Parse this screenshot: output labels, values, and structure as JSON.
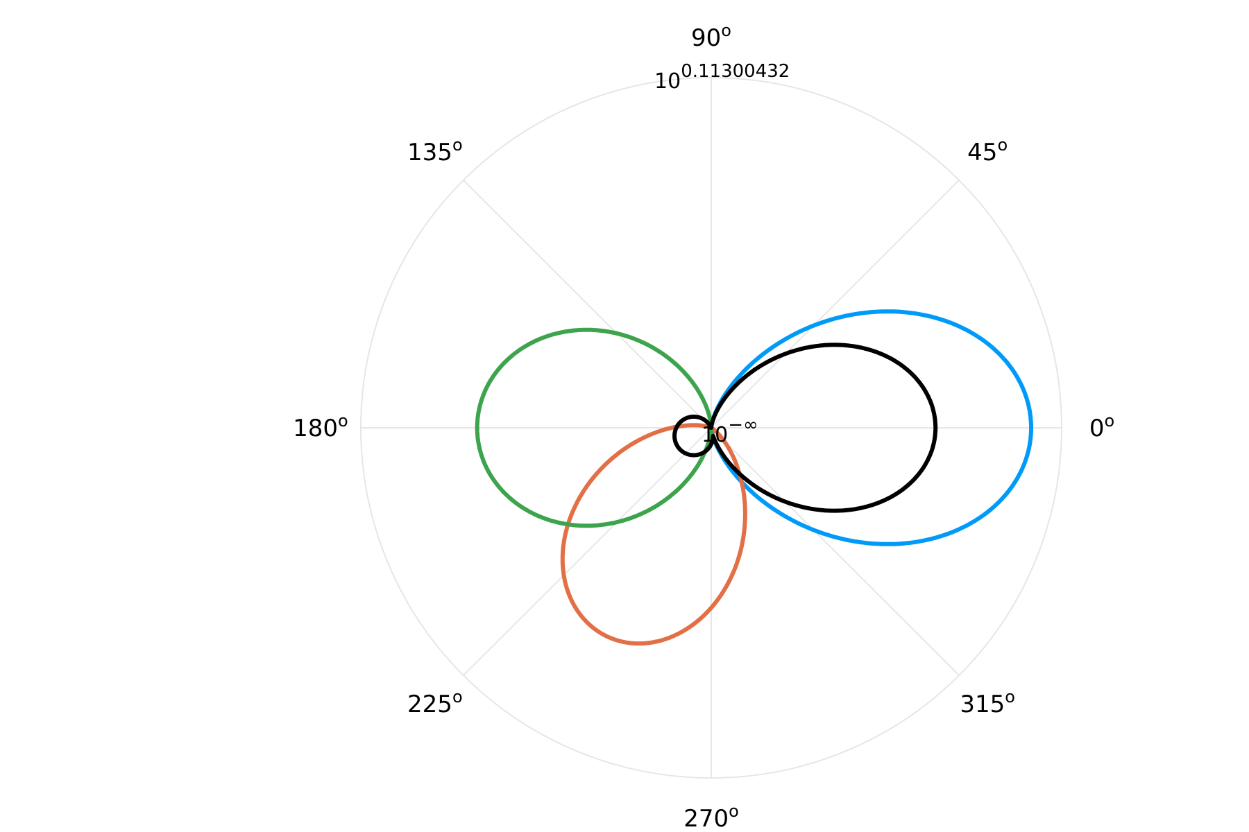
{
  "chart_data": {
    "type": "polar-line",
    "title": "",
    "theta_unit": "degrees",
    "angular_ticks": [
      {
        "value": 0,
        "base": "0",
        "sup": "o"
      },
      {
        "value": 45,
        "base": "45",
        "sup": "o"
      },
      {
        "value": 90,
        "base": "90",
        "sup": "o"
      },
      {
        "value": 135,
        "base": "135",
        "sup": "o"
      },
      {
        "value": 180,
        "base": "180",
        "sup": "o"
      },
      {
        "value": 225,
        "base": "225",
        "sup": "o"
      },
      {
        "value": 270,
        "base": "270",
        "sup": "o"
      },
      {
        "value": 315,
        "base": "315",
        "sup": "o"
      }
    ],
    "radial_scale": "log10",
    "radial_ticks": [
      {
        "position": "center",
        "base": "10",
        "sup": "−∞"
      },
      {
        "position": "outer",
        "base": "10",
        "sup": "0.11300432"
      }
    ],
    "rlim_normalized": [
      0,
      1
    ],
    "grid": true,
    "legend": "none",
    "series": [
      {
        "color": "#009AF9",
        "lobe_direction_deg": 0,
        "peak_r": 0.913,
        "half_width": 0.24
      },
      {
        "color": "#E26F46",
        "lobe_direction_deg": 243,
        "peak_r": 0.666,
        "half_width": 0.245
      },
      {
        "color": "#3DA44D",
        "lobe_direction_deg": 180,
        "peak_r": 0.668,
        "half_width": 0.34
      },
      {
        "color": "#000000",
        "lobe_direction_deg": 0,
        "peak_r": 0.64,
        "half_width": 0.25,
        "back_lobe": {
          "direction_deg": 205,
          "peak_r": 0.11,
          "half_width": 0.55
        }
      }
    ]
  }
}
